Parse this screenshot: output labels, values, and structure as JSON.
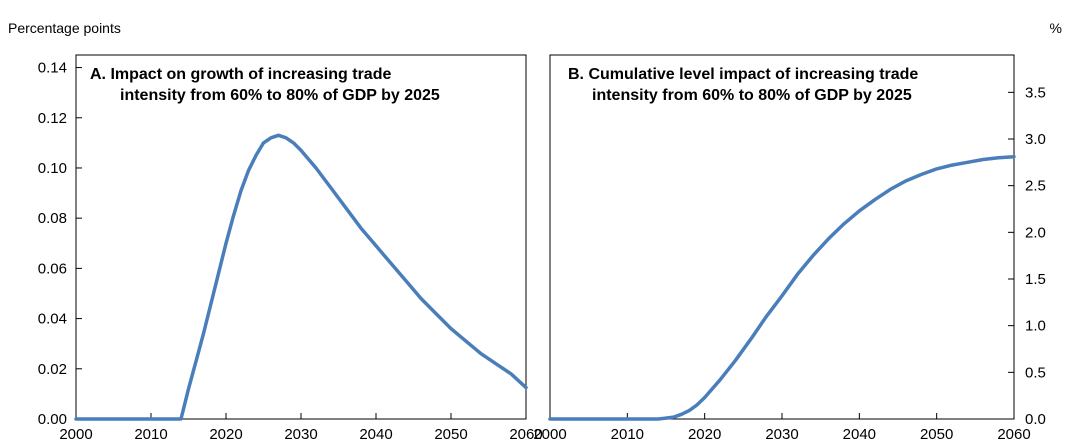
{
  "chart_data": [
    {
      "type": "line",
      "title_lines": [
        "A. Impact on growth  of increasing trade",
        "intensity from 60% to 80% of GDP by 2025"
      ],
      "unit_label": "Percentage points",
      "xlim": [
        2000,
        2060
      ],
      "ylim": [
        0,
        0.145
      ],
      "x_ticks": [
        "2000",
        "2010",
        "2020",
        "2030",
        "2040",
        "2050",
        "2060"
      ],
      "y_ticks": [
        "0.00",
        "0.02",
        "0.04",
        "0.06",
        "0.08",
        "0.10",
        "0.12",
        "0.14"
      ],
      "y_axis_side": "left",
      "grid": false,
      "color": "#4a7ebb",
      "series": [
        {
          "x": [
            2000,
            2014,
            2015,
            2016,
            2017,
            2018,
            2019,
            2020,
            2021,
            2022,
            2023,
            2024,
            2025,
            2026,
            2027,
            2028,
            2029,
            2030,
            2032,
            2034,
            2036,
            2038,
            2040,
            2042,
            2044,
            2046,
            2048,
            2050,
            2052,
            2054,
            2056,
            2058,
            2060
          ],
          "y": [
            0,
            0,
            0.012,
            0.023,
            0.034,
            0.046,
            0.058,
            0.07,
            0.081,
            0.091,
            0.099,
            0.105,
            0.11,
            0.112,
            0.113,
            0.112,
            0.11,
            0.107,
            0.1,
            0.092,
            0.084,
            0.076,
            0.069,
            0.062,
            0.055,
            0.048,
            0.042,
            0.036,
            0.031,
            0.026,
            0.022,
            0.018,
            0.0125
          ]
        }
      ]
    },
    {
      "type": "line",
      "title_lines": [
        "B. Cumulative level impact of increasing trade",
        "intensity from 60% to 80% of GDP by 2025"
      ],
      "unit_label": "%",
      "xlim": [
        2000,
        2060
      ],
      "ylim": [
        0,
        3.9
      ],
      "x_ticks": [
        "2000",
        "2010",
        "2020",
        "2030",
        "2040",
        "2050",
        "2060"
      ],
      "y_ticks": [
        "0.0",
        "0.5",
        "1.0",
        "1.5",
        "2.0",
        "2.5",
        "3.0",
        "3.5"
      ],
      "y_axis_side": "right",
      "grid": false,
      "color": "#4a7ebb",
      "series": [
        {
          "x": [
            2000,
            2014,
            2015,
            2016,
            2017,
            2018,
            2019,
            2020,
            2022,
            2024,
            2026,
            2028,
            2030,
            2032,
            2034,
            2036,
            2038,
            2040,
            2042,
            2044,
            2046,
            2048,
            2050,
            2052,
            2054,
            2056,
            2058,
            2060
          ],
          "y": [
            0,
            0,
            0.01,
            0.02,
            0.05,
            0.09,
            0.15,
            0.23,
            0.42,
            0.63,
            0.86,
            1.1,
            1.32,
            1.55,
            1.75,
            1.93,
            2.09,
            2.23,
            2.35,
            2.46,
            2.55,
            2.62,
            2.68,
            2.72,
            2.75,
            2.78,
            2.8,
            2.81
          ]
        }
      ]
    }
  ]
}
